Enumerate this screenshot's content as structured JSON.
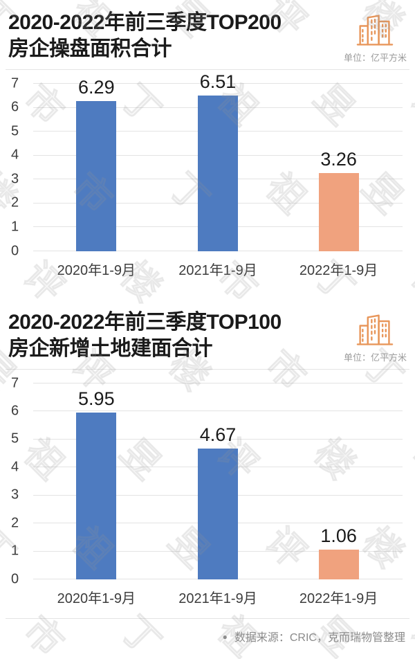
{
  "watermark": "丁祖昱评楼市",
  "colors": {
    "bar_blue": "#4E7BC0",
    "bar_orange": "#F0A27E",
    "icon_orange": "#E8965A",
    "gridline": "#E3E3E3",
    "title_text": "#1A1A1A",
    "axis_text": "#3C3C3C",
    "unit_text": "#9B9B9B",
    "source_text": "#8A8A8A"
  },
  "chart_data": [
    {
      "type": "bar",
      "title_line1": "2020-2022年前三季度TOP200",
      "title_line2": "房企操盘面积合计",
      "unit_label": "单位：亿平方米",
      "categories": [
        "2020年1-9月",
        "2021年1-9月",
        "2022年1-9月"
      ],
      "values": [
        6.29,
        6.51,
        3.26
      ],
      "value_labels": [
        "6.29",
        "6.51",
        "3.26"
      ],
      "bar_colors": [
        "#4E7BC0",
        "#4E7BC0",
        "#F0A27E"
      ],
      "ylim": [
        0,
        7
      ],
      "y_ticks": [
        0,
        1,
        2,
        3,
        4,
        5,
        6,
        7
      ],
      "xlabel": "",
      "ylabel": "",
      "grid": true,
      "legend": false
    },
    {
      "type": "bar",
      "title_line1": "2020-2022年前三季度TOP100",
      "title_line2": "房企新增土地建面合计",
      "unit_label": "单位：亿平方米",
      "categories": [
        "2020年1-9月",
        "2021年1-9月",
        "2022年1-9月"
      ],
      "values": [
        5.95,
        4.67,
        1.06
      ],
      "value_labels": [
        "5.95",
        "4.67",
        "1.06"
      ],
      "bar_colors": [
        "#4E7BC0",
        "#4E7BC0",
        "#F0A27E"
      ],
      "ylim": [
        0,
        7
      ],
      "y_ticks": [
        0,
        1,
        2,
        3,
        4,
        5,
        6,
        7
      ],
      "xlabel": "",
      "ylabel": "",
      "grid": true,
      "legend": false
    }
  ],
  "footer": {
    "bullet": "●",
    "source_label": "数据来源：CRIC，克而瑞物管整理"
  }
}
